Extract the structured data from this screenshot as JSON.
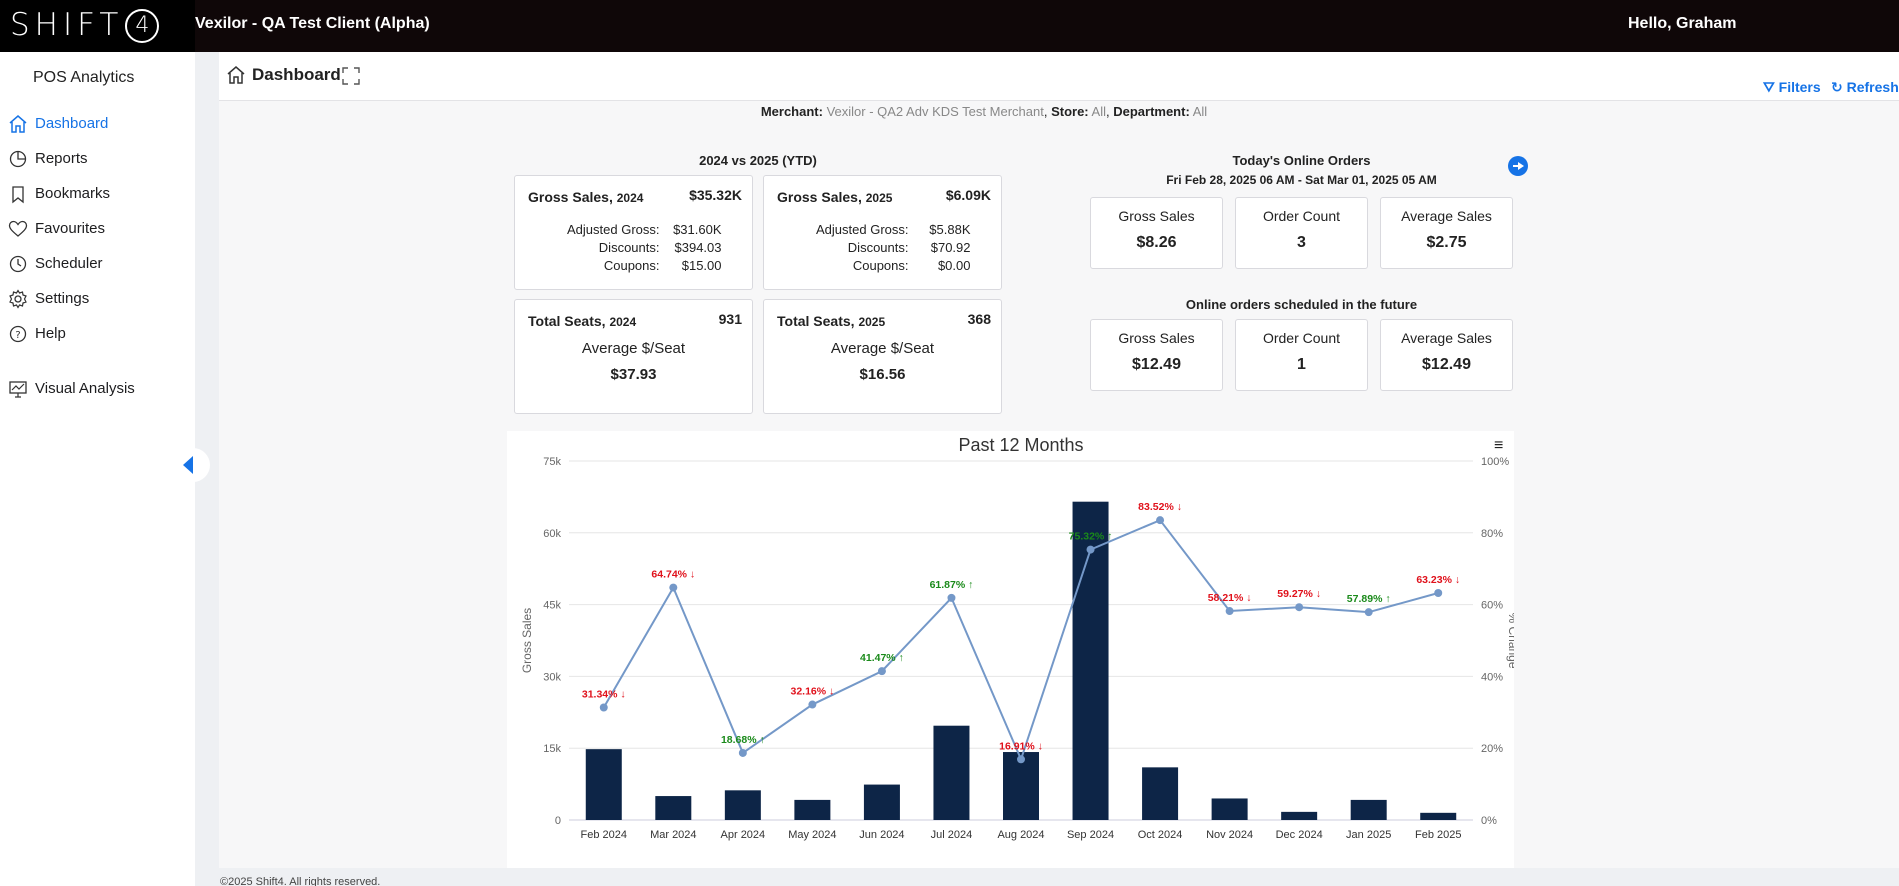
{
  "header": {
    "logo_text": "SHIFT",
    "logo_number": "4",
    "client_name": "Vexilor - QA Test Client (Alpha)",
    "greeting": "Hello, Graham"
  },
  "sidebar": {
    "app_name": "POS Analytics",
    "items": [
      {
        "label": "Dashboard",
        "icon": "home-icon",
        "active": true
      },
      {
        "label": "Reports",
        "icon": "pie-chart-icon"
      },
      {
        "label": "Bookmarks",
        "icon": "bookmark-icon"
      },
      {
        "label": "Favourites",
        "icon": "heart-icon"
      },
      {
        "label": "Scheduler",
        "icon": "clock-icon"
      },
      {
        "label": "Settings",
        "icon": "gear-icon"
      },
      {
        "label": "Help",
        "icon": "help-icon"
      },
      {
        "label": "Visual Analysis",
        "icon": "monitor-chart-icon"
      }
    ]
  },
  "page": {
    "title": "Dashboard",
    "filters_label": "Filters",
    "refresh_label": "Refresh"
  },
  "merchant": {
    "merchant_label": "Merchant:",
    "merchant_value": "Vexilor - QA2 Adv KDS Test Merchant",
    "store_label": "Store:",
    "store_value": "All",
    "department_label": "Department:",
    "department_value": "All"
  },
  "ytd": {
    "title": "2024 vs 2025 (YTD)",
    "gross_2024": {
      "label": "Gross Sales,",
      "year": "2024",
      "amount": "$35.32K",
      "adjusted_label": "Adjusted Gross:",
      "adjusted": "$31.60K",
      "discounts_label": "Discounts:",
      "discounts": "$394.03",
      "coupons_label": "Coupons:",
      "coupons": "$15.00"
    },
    "gross_2025": {
      "label": "Gross Sales,",
      "year": "2025",
      "amount": "$6.09K",
      "adjusted_label": "Adjusted Gross:",
      "adjusted": "$5.88K",
      "discounts_label": "Discounts:",
      "discounts": "$70.92",
      "coupons_label": "Coupons:",
      "coupons": "$0.00"
    },
    "seats_2024": {
      "label": "Total Seats,",
      "year": "2024",
      "amount": "931",
      "avg_label": "Average $/Seat",
      "avg": "$37.93"
    },
    "seats_2025": {
      "label": "Total Seats,",
      "year": "2025",
      "amount": "368",
      "avg_label": "Average $/Seat",
      "avg": "$16.56"
    }
  },
  "online_today": {
    "title": "Today's Online Orders",
    "range": "Fri Feb 28, 2025 06 AM - Sat Mar 01, 2025 05 AM",
    "cards": [
      {
        "label": "Gross Sales",
        "value": "$8.26"
      },
      {
        "label": "Order Count",
        "value": "3"
      },
      {
        "label": "Average Sales",
        "value": "$2.75"
      }
    ]
  },
  "online_future": {
    "title": "Online orders scheduled in the future",
    "cards": [
      {
        "label": "Gross Sales",
        "value": "$12.49"
      },
      {
        "label": "Order Count",
        "value": "1"
      },
      {
        "label": "Average Sales",
        "value": "$12.49"
      }
    ]
  },
  "chart_data": {
    "type": "bar",
    "title": "Past 12 Months",
    "xlabel": "",
    "ylabel": "Gross Sales",
    "y2label": "% Change",
    "categories": [
      "Feb 2024",
      "Mar 2024",
      "Apr 2024",
      "May 2024",
      "Jun 2024",
      "Jul 2024",
      "Aug 2024",
      "Sep 2024",
      "Oct 2024",
      "Nov 2024",
      "Dec 2024",
      "Jan 2025",
      "Feb 2025"
    ],
    "ylim": [
      0,
      75000
    ],
    "y2lim": [
      0,
      100
    ],
    "yticks": [
      "0",
      "15k",
      "30k",
      "45k",
      "60k",
      "75k"
    ],
    "y2ticks": [
      "0%",
      "20%",
      "40%",
      "60%",
      "80%",
      "100%"
    ],
    "series": [
      {
        "name": "Gross Sales",
        "type": "bar",
        "color": "#0d2547",
        "values": [
          14800,
          5000,
          6200,
          4200,
          7400,
          19700,
          14200,
          66500,
          11000,
          4500,
          1700,
          4200,
          1500
        ]
      },
      {
        "name": "% Change",
        "type": "line",
        "color": "#7498c8",
        "values": [
          31.34,
          64.74,
          18.68,
          32.16,
          41.47,
          61.87,
          16.91,
          75.32,
          83.52,
          58.21,
          59.27,
          57.89,
          63.23
        ],
        "labels": [
          "31.34% ↓",
          "64.74% ↓",
          "18.68% ↑",
          "32.16% ↓",
          "41.47% ↑",
          "61.87% ↑",
          "16.91% ↓",
          "75.32% ↑",
          "83.52% ↓",
          "58.21% ↓",
          "59.27% ↓",
          "57.89% ↑",
          "63.23% ↓"
        ],
        "directions": [
          "down",
          "down",
          "up",
          "down",
          "up",
          "up",
          "down",
          "up",
          "down",
          "down",
          "down",
          "up",
          "down"
        ]
      }
    ],
    "grid": true,
    "menu_icon": "hamburger-icon"
  },
  "footer": {
    "text": "©2025 Shift4. All rights reserved."
  }
}
